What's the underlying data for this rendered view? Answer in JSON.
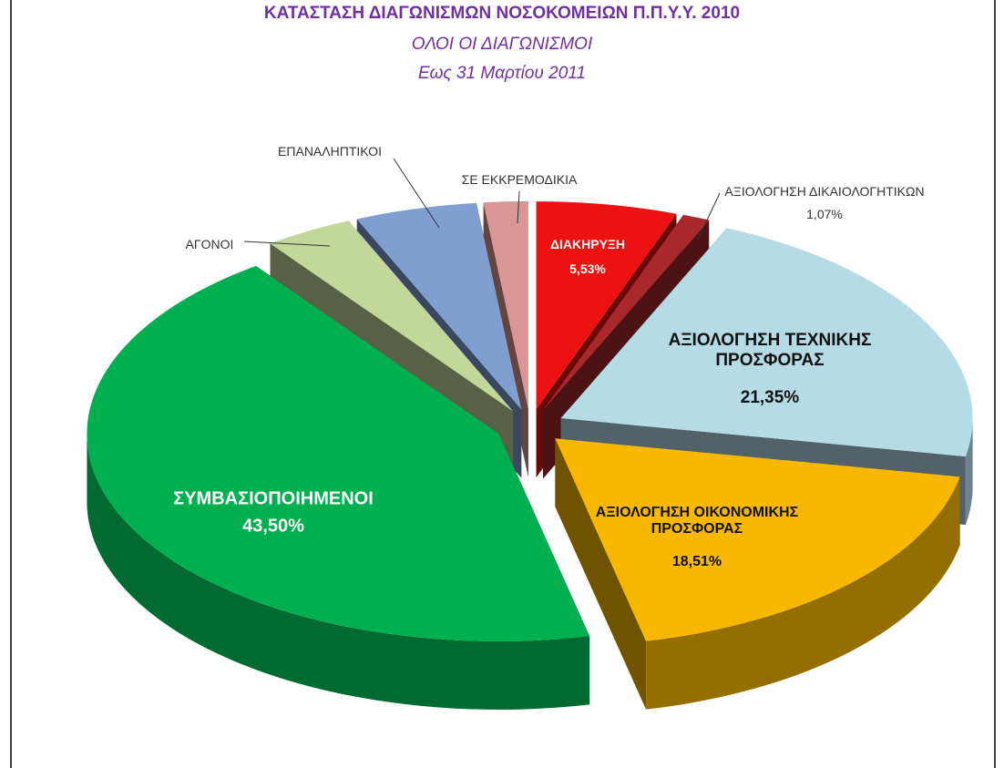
{
  "chart_data": {
    "type": "pie",
    "title": "ΚΑΤΑΣΤΑΣΗ ΔΙΑΓΩΝΙΣΜΩΝ  ΝΟΣΟΚΟΜΕΙΩΝ Π.Π.Υ.Υ. 2010",
    "subtitle": [
      "ΟΛΟΙ ΟΙ ΔΙΑΓΩΝΙΣΜΟΙ",
      "Εως 31 Μαρτίου 2011"
    ],
    "categories": [
      "ΔΙΑΚΗΡΥΞΗ",
      "ΑΞΙΟΛΟΓΗΣΗ ΔΙΚΑΙΟΛΟΓΗΤΙΚΩΝ",
      "ΑΞΙΟΛΟΓΗΣΗ ΤΕΧΝΙΚΗΣ ΠΡΟΣΦΟΡΑΣ",
      "ΑΞΙΟΛΟΓΗΣΗ ΟΙΚΟΝΟΜΙΚΗΣ ΠΡΟΣΦΟΡΑΣ",
      "ΣΥΜΒΑΣΙΟΠΟΙΗΜΕΝΟΙ",
      "ΑΓΟΝΟΙ",
      "ΕΠΑΝΑΛΗΠΤΙΚΟΙ",
      "ΣΕ ΕΚΚΡΕΜΟΔΙΚΙΑ"
    ],
    "values": [
      5.53,
      1.07,
      21.35,
      18.51,
      43.5,
      3.5,
      4.8,
      1.74
    ],
    "value_labels": [
      "5,53%",
      "1,07%",
      "21,35%",
      "18,51%",
      "43,50%",
      null,
      null,
      null
    ],
    "colors": [
      "#ee1111",
      "#a8282c",
      "#b5dbe6",
      "#f8b800",
      "#00b050",
      "#c4d79b",
      "#7f9fd0",
      "#d99694"
    ]
  }
}
